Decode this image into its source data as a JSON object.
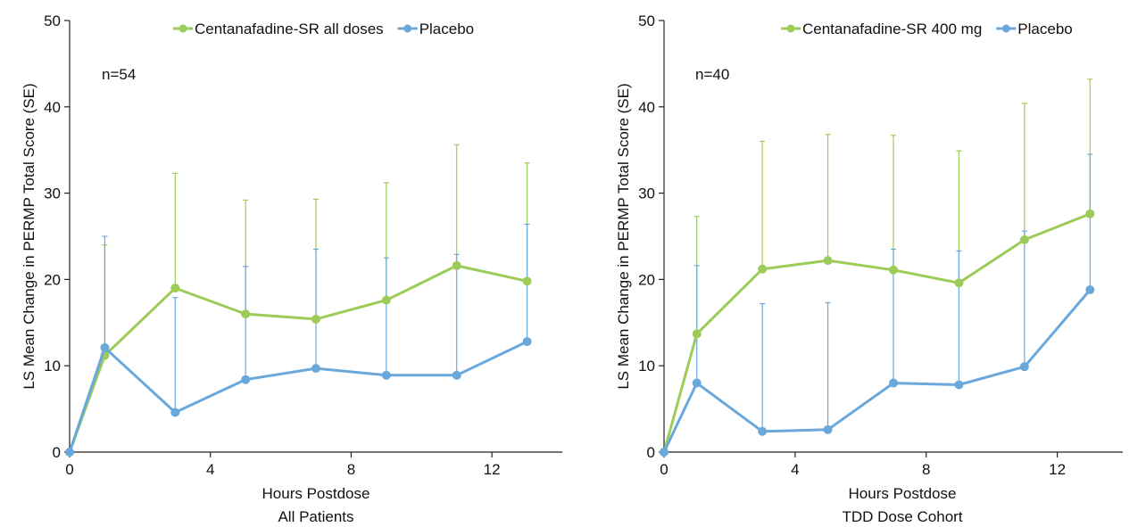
{
  "colors": {
    "treatment": "#9ccb58",
    "placebo": "#6aa8dc",
    "axis": "#222222"
  },
  "chart_data": [
    {
      "type": "line",
      "xlabel": "Hours Postdose",
      "subtitle": "All Patients",
      "ylabel": "LS Mean Change in PERMP Total Score (SE)",
      "annotation": "n=54",
      "xlim": [
        0,
        14
      ],
      "ylim": [
        0,
        50
      ],
      "xticks": [
        0,
        4,
        8,
        12
      ],
      "yticks": [
        0,
        10,
        20,
        30,
        40,
        50
      ],
      "x": [
        0,
        1,
        3,
        5,
        7,
        9,
        11,
        13
      ],
      "legend_position": "top",
      "grid": false,
      "series": [
        {
          "name": "Centanafadine-SR all doses",
          "color_key": "treatment",
          "values": [
            0,
            11.2,
            19.0,
            16.0,
            15.4,
            17.6,
            21.6,
            19.8
          ],
          "error_upper": [
            0,
            24.0,
            32.3,
            29.2,
            29.3,
            31.2,
            35.6,
            33.5
          ]
        },
        {
          "name": "Placebo",
          "color_key": "placebo",
          "values": [
            0,
            12.1,
            4.6,
            8.4,
            9.7,
            8.9,
            8.9,
            12.8
          ],
          "error_upper": [
            0,
            25.0,
            17.9,
            21.5,
            23.5,
            22.5,
            22.9,
            26.4
          ]
        }
      ]
    },
    {
      "type": "line",
      "xlabel": "Hours Postdose",
      "subtitle": "TDD Dose Cohort",
      "ylabel": "LS Mean Change in PERMP Total Score (SE)",
      "annotation": "n=40",
      "xlim": [
        0,
        14
      ],
      "ylim": [
        0,
        50
      ],
      "xticks": [
        0,
        4,
        8,
        12
      ],
      "yticks": [
        0,
        10,
        20,
        30,
        40,
        50
      ],
      "x": [
        0,
        1,
        3,
        5,
        7,
        9,
        11,
        13
      ],
      "legend_position": "top",
      "grid": false,
      "series": [
        {
          "name": "Centanafadine-SR 400 mg",
          "color_key": "treatment",
          "values": [
            0,
            13.7,
            21.2,
            22.2,
            21.1,
            19.6,
            24.6,
            27.6
          ],
          "error_upper": [
            0,
            27.3,
            36.0,
            36.8,
            36.7,
            34.9,
            40.4,
            43.2
          ]
        },
        {
          "name": "Placebo",
          "color_key": "placebo",
          "values": [
            0,
            8.0,
            2.4,
            2.6,
            8.0,
            7.8,
            9.9,
            18.8
          ],
          "error_upper": [
            0,
            21.6,
            17.2,
            17.3,
            23.5,
            23.3,
            25.6,
            34.5
          ]
        }
      ]
    }
  ]
}
